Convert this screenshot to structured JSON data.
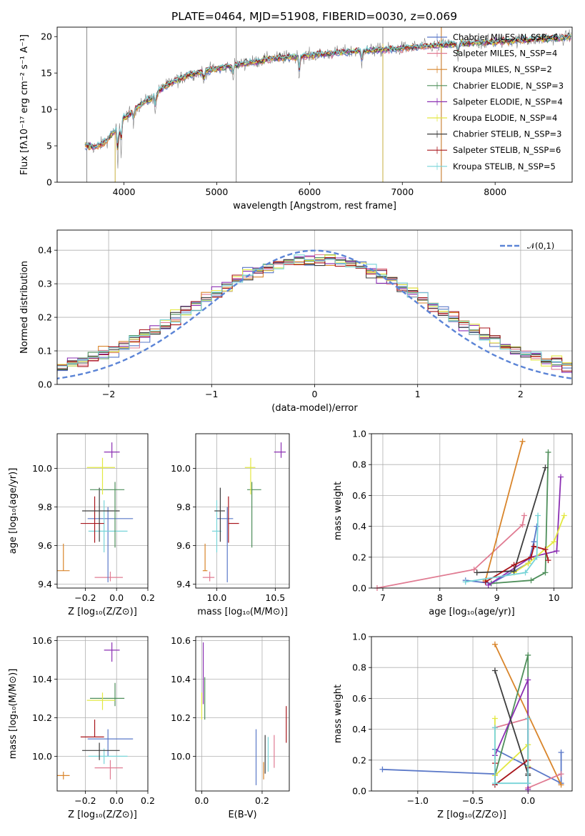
{
  "chart_data": [
    {
      "type": "line",
      "title": "PLATE=0464, MJD=51908, FIBERID=0030, z=0.069",
      "xlabel": "wavelength [Angstrom, rest frame]",
      "ylabel": "Flux [fλ10⁻¹⁷ erg cm⁻² s⁻¹ A⁻¹]",
      "xlim": [
        3280,
        8830
      ],
      "ylim": [
        0,
        21.3
      ],
      "xticks": [
        "4000",
        "5000",
        "6000",
        "7000",
        "8000"
      ],
      "yticks": [
        "0",
        "5",
        "10",
        "15",
        "20"
      ],
      "grid": false,
      "legend_position": "right",
      "series": [
        {
          "name": "Chabrier MILES, N_SSP=6",
          "color": "#5a78c8"
        },
        {
          "name": "Salpeter MILES, N_SSP=4",
          "color": "#e07b92"
        },
        {
          "name": "Kroupa MILES, N_SSP=2",
          "color": "#d9852b"
        },
        {
          "name": "Chabrier ELODIE, N_SSP=3",
          "color": "#4f8f5b"
        },
        {
          "name": "Salpeter ELODIE, N_SSP=4",
          "color": "#8b2fb3"
        },
        {
          "name": "Kroupa ELODIE, N_SSP=4",
          "color": "#e3e841"
        },
        {
          "name": "Chabrier STELIB, N_SSP=3",
          "color": "#3d3d3d"
        },
        {
          "name": "Salpeter STELIB, N_SSP=6",
          "color": "#a8151c"
        },
        {
          "name": "Kroupa STELIB, N_SSP=5",
          "color": "#77d4d8"
        }
      ],
      "continuum": {
        "x": [
          3580,
          3700,
          3800,
          3900,
          4000,
          4100,
          4200,
          4300,
          4400,
          4500,
          4700,
          5000,
          5300,
          5600,
          6000,
          6400,
          6800,
          7200,
          7600,
          8000,
          8400,
          8800
        ],
        "y": [
          5.0,
          4.8,
          5.6,
          7.0,
          8.8,
          9.8,
          10.9,
          11.5,
          12.8,
          13.6,
          14.8,
          15.6,
          16.3,
          17.0,
          17.4,
          17.9,
          18.2,
          18.6,
          19.0,
          19.3,
          19.6,
          19.9
        ]
      }
    },
    {
      "type": "line",
      "xlabel": "(data-model)/error",
      "ylabel": "Normed distribution",
      "xlim": [
        -2.5,
        2.5
      ],
      "ylim": [
        0,
        0.46
      ],
      "xticks": [
        "−2",
        "−1",
        "0",
        "1",
        "2"
      ],
      "yticks": [
        "0.0",
        "0.1",
        "0.2",
        "0.3",
        "0.4"
      ],
      "grid": true,
      "legend_position": "top-right",
      "reference": {
        "name": "𝒩(0,1)",
        "color": "#5b84d6",
        "mean": 0,
        "sigma": 1
      }
    },
    {
      "type": "scatter",
      "xlabel": "Z [log₁₀(Z/Z⊙)]",
      "ylabel": "age  [log₁₀(age/yr)]",
      "xlim": [
        -0.38,
        0.2
      ],
      "ylim": [
        9.38,
        10.18
      ],
      "xticks": [
        "−0.2",
        "0.0",
        "0.2"
      ],
      "yticks": [
        "9.4",
        "9.6",
        "9.8",
        "10.0"
      ],
      "grid": true,
      "points": [
        {
          "x": -0.04,
          "y": 9.435,
          "xerr": [
            0.1,
            0.08
          ],
          "yerr": [
            0.02,
            0.03
          ],
          "color": "#e07b92"
        },
        {
          "x": -0.055,
          "y": 9.74,
          "xerr": [
            0.13,
            0.16
          ],
          "yerr": [
            0.33,
            0.06
          ],
          "color": "#5a78c8"
        },
        {
          "x": -0.34,
          "y": 9.47,
          "xerr": [
            0.04,
            0.04
          ],
          "yerr": [
            0.0,
            0.14
          ],
          "color": "#d9852b"
        },
        {
          "x": -0.08,
          "y": 9.675,
          "xerr": [
            0.1,
            0.15
          ],
          "yerr": [
            0.11,
            0.16
          ],
          "color": "#77d4d8"
        },
        {
          "x": -0.14,
          "y": 9.715,
          "xerr": [
            0.09,
            0.06
          ],
          "yerr": [
            0.1,
            0.14
          ],
          "color": "#a8151c"
        },
        {
          "x": -0.11,
          "y": 9.78,
          "xerr": [
            0.11,
            0.13
          ],
          "yerr": [
            0.16,
            0.12
          ],
          "color": "#3d3d3d"
        },
        {
          "x": -0.01,
          "y": 9.89,
          "xerr": [
            0.16,
            0.06
          ],
          "yerr": [
            0.3,
            0.04
          ],
          "color": "#4f8f5b"
        },
        {
          "x": -0.09,
          "y": 10.005,
          "xerr": [
            0.1,
            0.08
          ],
          "yerr": [
            0.14,
            0.05
          ],
          "color": "#e3e841"
        },
        {
          "x": -0.03,
          "y": 10.085,
          "xerr": [
            0.05,
            0.05
          ],
          "yerr": [
            0.03,
            0.05
          ],
          "color": "#8b2fb3"
        }
      ]
    },
    {
      "type": "scatter",
      "xlabel": "mass [log₁₀(M/M⊙)]",
      "xlim": [
        9.82,
        10.62
      ],
      "ylim": [
        9.38,
        10.18
      ],
      "xticks": [
        "10.0",
        "10.5"
      ],
      "yticks": [
        "9.4",
        "9.6",
        "9.8",
        "10.0"
      ],
      "grid": true,
      "points": [
        {
          "x": 9.94,
          "y": 9.435,
          "xerr": [
            0.06,
            0.04
          ],
          "yerr": [
            0.02,
            0.03
          ],
          "color": "#e07b92"
        },
        {
          "x": 10.09,
          "y": 9.74,
          "xerr": [
            0.09,
            0.05
          ],
          "yerr": [
            0.33,
            0.06
          ],
          "color": "#5a78c8"
        },
        {
          "x": 9.9,
          "y": 9.47,
          "xerr": [
            0.02,
            0.02
          ],
          "yerr": [
            0.0,
            0.14
          ],
          "color": "#d9852b"
        },
        {
          "x": 10.0,
          "y": 9.675,
          "xerr": [
            0.04,
            0.04
          ],
          "yerr": [
            0.11,
            0.16
          ],
          "color": "#77d4d8"
        },
        {
          "x": 10.1,
          "y": 9.715,
          "xerr": [
            0.0,
            0.09
          ],
          "yerr": [
            0.1,
            0.14
          ],
          "color": "#a8151c"
        },
        {
          "x": 10.03,
          "y": 9.78,
          "xerr": [
            0.05,
            0.04
          ],
          "yerr": [
            0.16,
            0.12
          ],
          "color": "#3d3d3d"
        },
        {
          "x": 10.3,
          "y": 9.89,
          "xerr": [
            0.04,
            0.08
          ],
          "yerr": [
            0.3,
            0.04
          ],
          "color": "#4f8f5b"
        },
        {
          "x": 10.29,
          "y": 10.005,
          "xerr": [
            0.05,
            0.04
          ],
          "yerr": [
            0.14,
            0.05
          ],
          "color": "#e3e841"
        },
        {
          "x": 10.55,
          "y": 10.085,
          "xerr": [
            0.06,
            0.04
          ],
          "yerr": [
            0.03,
            0.05
          ],
          "color": "#8b2fb3"
        }
      ]
    },
    {
      "type": "line",
      "xlabel": "age  [log₁₀(age/yr)]",
      "ylabel": "mass weight",
      "xlim": [
        6.8,
        10.32
      ],
      "ylim": [
        0,
        1.0
      ],
      "xticks": [
        "7",
        "8",
        "9",
        "10"
      ],
      "yticks": [
        "0.0",
        "0.2",
        "0.4",
        "0.6",
        "0.8",
        "1.0"
      ],
      "grid": true,
      "series": [
        {
          "color": "#e07b92",
          "x": [
            6.9,
            8.6,
            9.45,
            9.48
          ],
          "y": [
            0.0,
            0.12,
            0.41,
            0.47
          ]
        },
        {
          "color": "#d9852b",
          "x": [
            8.8,
            9.45
          ],
          "y": [
            0.05,
            0.95
          ]
        },
        {
          "color": "#5a78c8",
          "x": [
            8.45,
            8.9,
            9.55,
            9.65,
            9.7
          ],
          "y": [
            0.05,
            0.03,
            0.16,
            0.3,
            0.4
          ]
        },
        {
          "color": "#4f8f5b",
          "x": [
            8.9,
            9.6,
            9.85,
            9.9
          ],
          "y": [
            0.03,
            0.05,
            0.1,
            0.88
          ]
        },
        {
          "color": "#8b2fb3",
          "x": [
            8.85,
            9.6,
            10.05,
            10.12
          ],
          "y": [
            0.02,
            0.2,
            0.24,
            0.72
          ]
        },
        {
          "color": "#e3e841",
          "x": [
            9.3,
            9.55,
            10.0,
            10.18
          ],
          "y": [
            0.1,
            0.16,
            0.3,
            0.47
          ]
        },
        {
          "color": "#3d3d3d",
          "x": [
            8.65,
            9.3,
            9.85
          ],
          "y": [
            0.1,
            0.11,
            0.78
          ]
        },
        {
          "color": "#a8151c",
          "x": [
            8.8,
            9.3,
            9.6,
            9.65,
            9.85,
            9.9
          ],
          "y": [
            0.04,
            0.15,
            0.2,
            0.27,
            0.25,
            0.18
          ]
        },
        {
          "color": "#77d4d8",
          "x": [
            8.45,
            9.5,
            9.7,
            9.72
          ],
          "y": [
            0.04,
            0.1,
            0.2,
            0.47
          ]
        }
      ]
    },
    {
      "type": "scatter",
      "xlabel": "Z [log₁₀(Z/Z⊙)]",
      "ylabel": "mass [log₁₀(M/M⊙)]",
      "xlim": [
        -0.38,
        0.2
      ],
      "ylim": [
        9.82,
        10.62
      ],
      "xticks": [
        "−0.2",
        "0.0",
        "0.2"
      ],
      "yticks": [
        "10.0",
        "10.2",
        "10.4",
        "10.6"
      ],
      "grid": true,
      "points": [
        {
          "x": -0.04,
          "y": 9.94,
          "xerr": [
            0.1,
            0.08
          ],
          "yerr": [
            0.06,
            0.04
          ],
          "color": "#e07b92"
        },
        {
          "x": -0.055,
          "y": 10.09,
          "xerr": [
            0.13,
            0.16
          ],
          "yerr": [
            0.09,
            0.05
          ],
          "color": "#5a78c8"
        },
        {
          "x": -0.34,
          "y": 9.9,
          "xerr": [
            0.04,
            0.04
          ],
          "yerr": [
            0.02,
            0.02
          ],
          "color": "#d9852b"
        },
        {
          "x": -0.08,
          "y": 10.0,
          "xerr": [
            0.1,
            0.15
          ],
          "yerr": [
            0.04,
            0.04
          ],
          "color": "#77d4d8"
        },
        {
          "x": -0.14,
          "y": 10.1,
          "xerr": [
            0.09,
            0.06
          ],
          "yerr": [
            0.0,
            0.09
          ],
          "color": "#a8151c"
        },
        {
          "x": -0.11,
          "y": 10.03,
          "xerr": [
            0.11,
            0.13
          ],
          "yerr": [
            0.05,
            0.04
          ],
          "color": "#3d3d3d"
        },
        {
          "x": -0.01,
          "y": 10.3,
          "xerr": [
            0.16,
            0.06
          ],
          "yerr": [
            0.04,
            0.08
          ],
          "color": "#4f8f5b"
        },
        {
          "x": -0.09,
          "y": 10.29,
          "xerr": [
            0.1,
            0.08
          ],
          "yerr": [
            0.05,
            0.04
          ],
          "color": "#e3e841"
        },
        {
          "x": -0.03,
          "y": 10.55,
          "xerr": [
            0.05,
            0.05
          ],
          "yerr": [
            0.06,
            0.04
          ],
          "color": "#8b2fb3"
        }
      ]
    },
    {
      "type": "scatter",
      "xlabel": "E(B-V)",
      "xlim": [
        -0.02,
        0.29
      ],
      "ylim": [
        9.82,
        10.62
      ],
      "xticks": [
        "0.0",
        "0.2"
      ],
      "yticks": [
        "10.0",
        "10.2",
        "10.4",
        "10.6"
      ],
      "grid": true,
      "points": [
        {
          "x": 0.0,
          "y": 10.27,
          "yerr": [
            0.08,
            0.06
          ],
          "color": "#e3e841"
        },
        {
          "x": 0.005,
          "y": 10.47,
          "yerr": [
            0.2,
            0.12
          ],
          "color": "#8b2fb3"
        },
        {
          "x": 0.01,
          "y": 10.31,
          "yerr": [
            0.12,
            0.1
          ],
          "color": "#4f8f5b"
        },
        {
          "x": 0.18,
          "y": 9.99,
          "yerr": [
            0.14,
            0.15
          ],
          "color": "#5a78c8"
        },
        {
          "x": 0.205,
          "y": 9.93,
          "yerr": [
            0.05,
            0.04
          ],
          "color": "#d9852b"
        },
        {
          "x": 0.21,
          "y": 10.01,
          "yerr": [
            0.1,
            0.1
          ],
          "color": "#3d3d3d"
        },
        {
          "x": 0.22,
          "y": 10.0,
          "yerr": [
            0.08,
            0.1
          ],
          "color": "#77d4d8"
        },
        {
          "x": 0.24,
          "y": 10.02,
          "yerr": [
            0.08,
            0.09
          ],
          "color": "#e07b92"
        },
        {
          "x": 0.28,
          "y": 10.16,
          "yerr": [
            0.09,
            0.1
          ],
          "color": "#a8151c"
        }
      ]
    },
    {
      "type": "line",
      "xlabel": "Z [log₁₀(Z/Z⊙)]",
      "ylabel": "mass weight",
      "xlim": [
        -1.42,
        0.4
      ],
      "ylim": [
        0,
        1.0
      ],
      "xticks": [
        "−1.0",
        "−0.5",
        "0.0"
      ],
      "yticks": [
        "0.0",
        "0.2",
        "0.4",
        "0.6",
        "0.8",
        "1.0"
      ],
      "grid": true,
      "series": [
        {
          "color": "#5a78c8",
          "x": [
            -1.32,
            -0.3,
            -0.3,
            0.3,
            0.3
          ],
          "y": [
            0.14,
            0.11,
            0.27,
            0.05,
            0.25
          ]
        },
        {
          "color": "#d9852b",
          "x": [
            -0.3,
            0.3
          ],
          "y": [
            0.95,
            0.04
          ]
        },
        {
          "color": "#e07b92",
          "x": [
            -0.3,
            0.0,
            0.0,
            0.3
          ],
          "y": [
            0.41,
            0.47,
            0.02,
            0.11
          ]
        },
        {
          "color": "#4f8f5b",
          "x": [
            -0.3,
            0.0,
            0.0
          ],
          "y": [
            0.1,
            0.88,
            0.05
          ]
        },
        {
          "color": "#8b2fb3",
          "x": [
            -0.3,
            0.0,
            0.0
          ],
          "y": [
            0.23,
            0.72,
            0.01
          ]
        },
        {
          "color": "#e3e841",
          "x": [
            -0.3,
            -0.3,
            0.0,
            0.0
          ],
          "y": [
            0.47,
            0.1,
            0.3,
            0.16
          ]
        },
        {
          "color": "#3d3d3d",
          "x": [
            -0.3,
            0.0,
            0.0
          ],
          "y": [
            0.78,
            0.11,
            0.1
          ]
        },
        {
          "color": "#a8151c",
          "x": [
            -0.3,
            -0.3,
            0.0,
            0.0
          ],
          "y": [
            0.18,
            0.04,
            0.2,
            0.15
          ]
        },
        {
          "color": "#77d4d8",
          "x": [
            -0.3,
            -0.3,
            0.0,
            0.0
          ],
          "y": [
            0.41,
            0.05,
            0.05,
            0.47
          ]
        }
      ]
    }
  ]
}
